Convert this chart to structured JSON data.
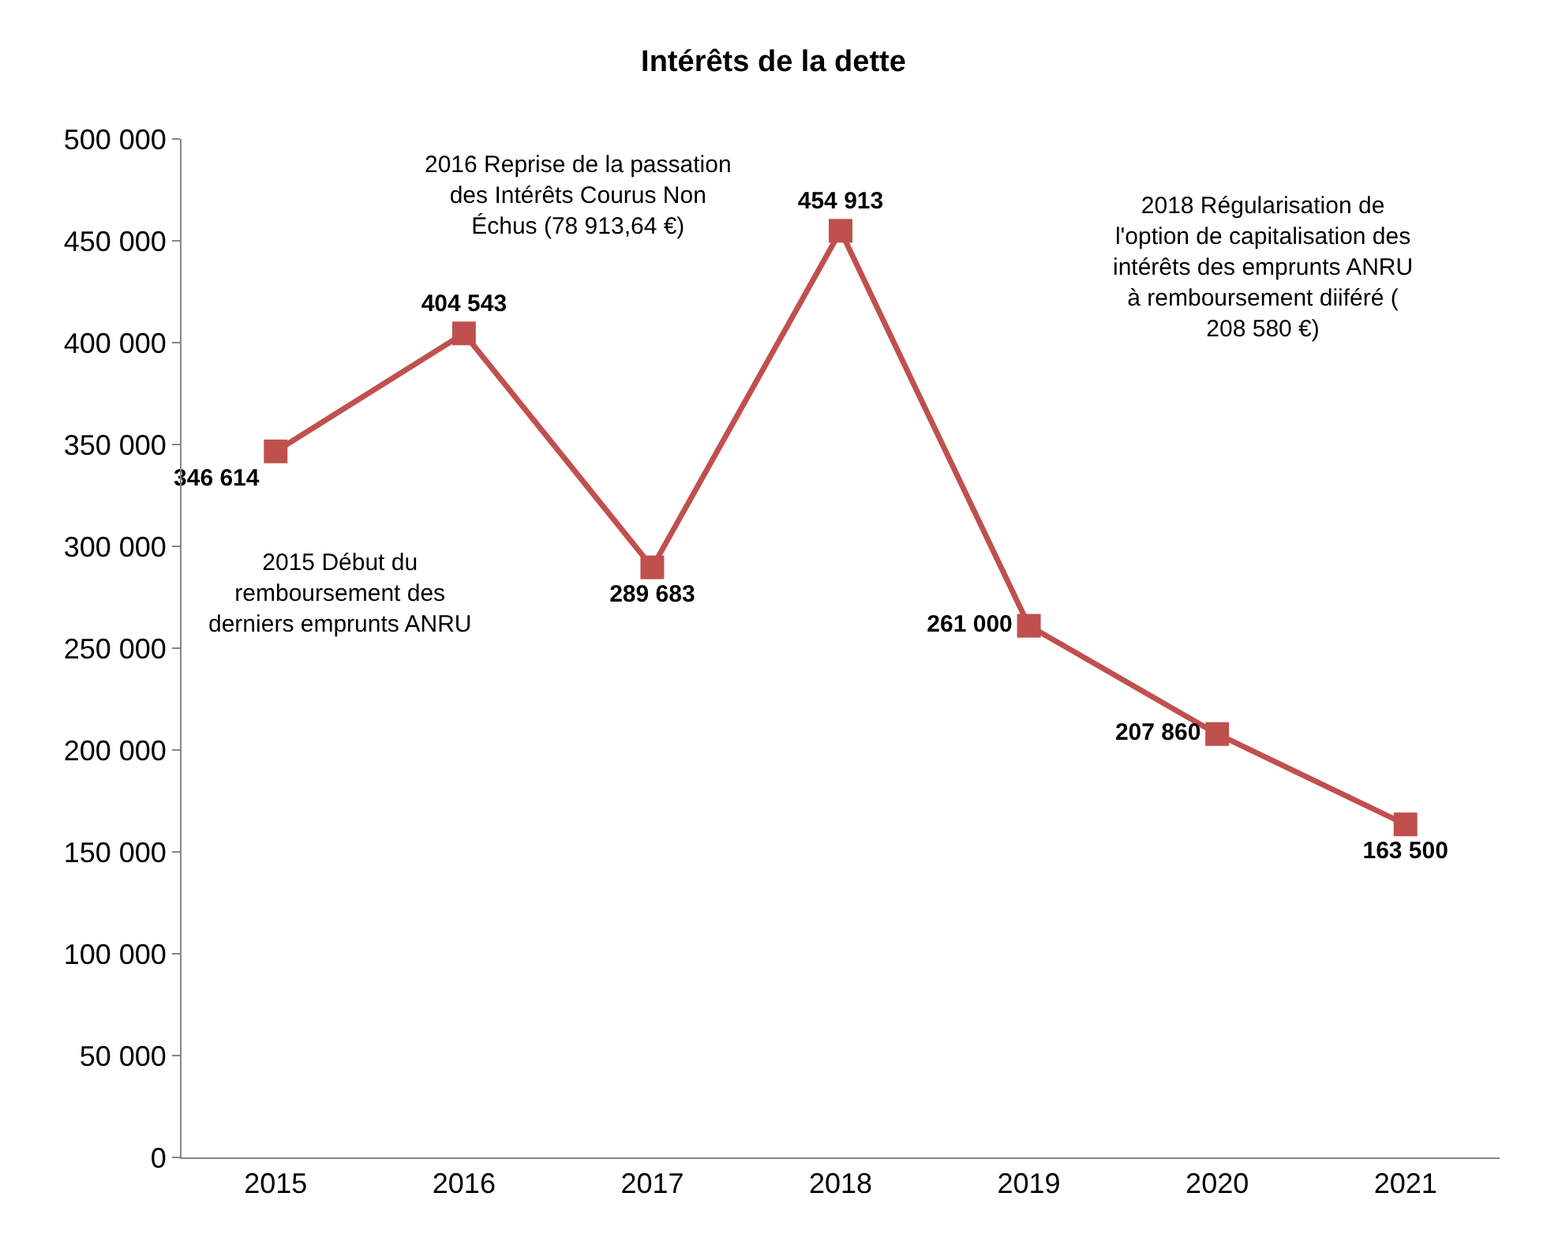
{
  "chart_data": {
    "type": "line",
    "title": "Intérêts de la dette",
    "categories": [
      "2015",
      "2016",
      "2017",
      "2018",
      "2019",
      "2020",
      "2021"
    ],
    "series": [
      {
        "color": "#c0504d",
        "values": [
          346614,
          404543,
          289683,
          454913,
          261000,
          207860,
          163500
        ],
        "value_labels": [
          "346 614",
          "404 543",
          "289 683",
          "454 913",
          "261 000",
          "207 860",
          "163 500"
        ]
      }
    ],
    "ylim": [
      0,
      500000
    ],
    "yticks": [
      0,
      {
        "value": 50000,
        "label": "50 000"
      },
      {
        "value": 100000,
        "label": "100 000"
      },
      {
        "value": 150000,
        "label": "150 000"
      },
      {
        "value": 200000,
        "label": "200 000"
      },
      {
        "value": 250000,
        "label": "250 000"
      },
      {
        "value": 300000,
        "label": "300 000"
      },
      {
        "value": 350000,
        "label": "350 000"
      },
      {
        "value": 400000,
        "label": "400 000"
      },
      {
        "value": 450000,
        "label": "450 000"
      },
      {
        "value": 500000,
        "label": "500 000"
      }
    ],
    "legend": false,
    "marker": "square",
    "line_style": "solid",
    "annotations": [
      "2016 Reprise de la passation\ndes Intérêts Courus Non\nÉchus (78 913,64 €)",
      "2018 Régularisation de\nl'option de capitalisation des\nintérêts des emprunts ANRU\nà remboursement diiféré (\n208 580 €)",
      "2015 Début du\nremboursement des\nderniers emprunts ANRU"
    ]
  }
}
